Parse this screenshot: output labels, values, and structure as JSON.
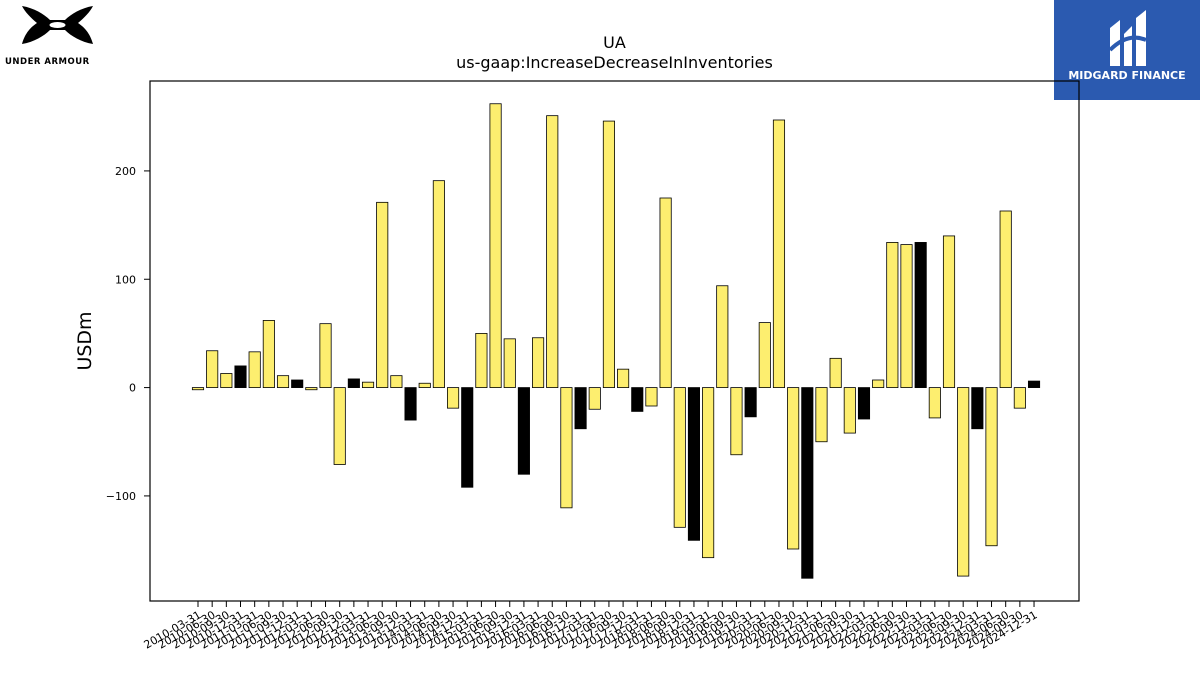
{
  "branding": {
    "left_logo_text": "UNDER ARMOUR",
    "right_logo_text": "MIDGARD FINANCE",
    "right_logo_bg": "#2b5ab0"
  },
  "chart_data": {
    "type": "bar",
    "title": "UA",
    "subtitle": "us-gaap:IncreaseDecreaseInInventories",
    "xlabel": "",
    "ylabel": "USDm",
    "ylim": [
      -197,
      283
    ],
    "yticks": [
      -100,
      0,
      100,
      200
    ],
    "grid": false,
    "colors": {
      "yellow": "#fdee6f",
      "black": "#000000",
      "edge": "#000000"
    },
    "categories": [
      "2010-03-31",
      "2010-06-30",
      "2010-09-30",
      "2010-12-31",
      "2011-03-31",
      "2011-06-30",
      "2011-09-30",
      "2011-12-31",
      "2012-03-31",
      "2012-06-30",
      "2012-09-30",
      "2012-12-31",
      "2013-03-31",
      "2013-06-30",
      "2013-09-30",
      "2013-12-31",
      "2014-03-31",
      "2014-06-30",
      "2014-09-30",
      "2014-12-31",
      "2015-03-31",
      "2015-06-30",
      "2015-09-30",
      "2015-12-31",
      "2016-03-31",
      "2016-06-30",
      "2016-09-30",
      "2016-12-31",
      "2017-03-31",
      "2017-06-30",
      "2017-09-30",
      "2017-12-31",
      "2018-03-31",
      "2018-06-30",
      "2018-09-30",
      "2018-12-31",
      "2019-03-31",
      "2019-06-30",
      "2019-09-30",
      "2019-12-31",
      "2020-03-31",
      "2020-06-30",
      "2020-09-30",
      "2020-12-31",
      "2021-03-31",
      "2021-06-30",
      "2021-09-30",
      "2021-12-31",
      "2022-03-31",
      "2022-06-30",
      "2022-09-30",
      "2022-12-31",
      "2023-03-31",
      "2023-06-30",
      "2023-09-30",
      "2023-12-31",
      "2024-03-31",
      "2024-06-30",
      "2024-09-30",
      "2024-12-31"
    ],
    "values": [
      -2,
      34,
      13,
      20,
      33,
      62,
      11,
      7,
      -2,
      59,
      -71,
      8,
      5,
      171,
      11,
      -30,
      4,
      191,
      -19,
      -92,
      50,
      262,
      45,
      -80,
      46,
      251,
      -111,
      -38,
      -20,
      246,
      17,
      -22,
      -17,
      175,
      -129,
      -141,
      -157,
      94,
      -62,
      -27,
      60,
      247,
      -149,
      -176,
      -50,
      27,
      -42,
      -29,
      7,
      134,
      132,
      134,
      -28,
      140,
      -174,
      -38,
      -146,
      163,
      -19,
      6
    ],
    "colors_per_bar": [
      "yellow",
      "yellow",
      "yellow",
      "black",
      "yellow",
      "yellow",
      "yellow",
      "black",
      "yellow",
      "yellow",
      "yellow",
      "black",
      "yellow",
      "yellow",
      "yellow",
      "black",
      "yellow",
      "yellow",
      "yellow",
      "black",
      "yellow",
      "yellow",
      "yellow",
      "black",
      "yellow",
      "yellow",
      "yellow",
      "black",
      "yellow",
      "yellow",
      "yellow",
      "black",
      "yellow",
      "yellow",
      "yellow",
      "black",
      "yellow",
      "yellow",
      "yellow",
      "black",
      "yellow",
      "yellow",
      "yellow",
      "black",
      "yellow",
      "yellow",
      "yellow",
      "black",
      "yellow",
      "yellow",
      "yellow",
      "black",
      "yellow",
      "yellow",
      "yellow",
      "black",
      "yellow",
      "yellow",
      "yellow",
      "black"
    ]
  }
}
